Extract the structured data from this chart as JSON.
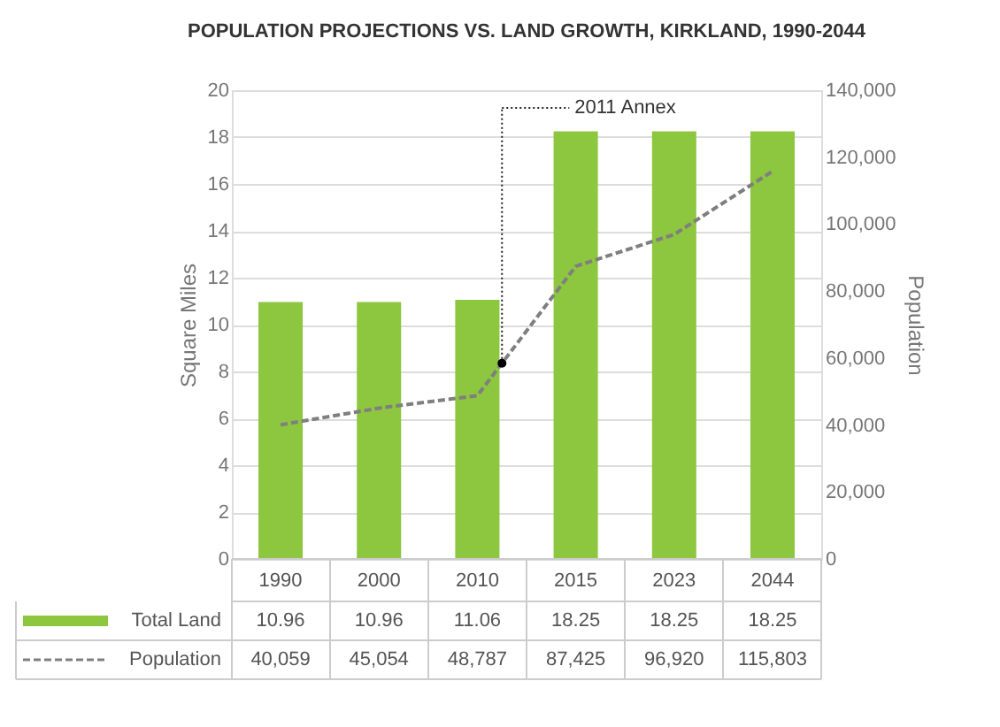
{
  "chart_data": {
    "type": "bar",
    "title": "POPULATION PROJECTIONS VS. LAND GROWTH, KIRKLAND, 1990-2044",
    "categories": [
      "1990",
      "2000",
      "2010",
      "2015",
      "2023",
      "2044"
    ],
    "series": [
      {
        "name": "Total Land",
        "color": "#8dc63f",
        "values": [
          10.96,
          10.96,
          11.06,
          18.25,
          18.25,
          18.25
        ],
        "value_labels": [
          "10.96",
          "10.96",
          "11.06",
          "18.25",
          "18.25",
          "18.25"
        ]
      },
      {
        "name": "Population",
        "type": "line",
        "axis": "y2",
        "color": "#7f7f7f",
        "line_style": "dashed",
        "values": [
          40059,
          45054,
          48787,
          87425,
          96920,
          115803
        ],
        "value_labels": [
          "40,059",
          "45,054",
          "48,787",
          "87,425",
          "96,920",
          "115,803"
        ]
      }
    ],
    "ylabel": "Square Miles",
    "y2label": "Population",
    "ylim": [
      0,
      20
    ],
    "yticks": [
      0,
      2,
      4,
      6,
      8,
      10,
      12,
      14,
      16,
      18,
      20
    ],
    "y2lim": [
      0,
      140000
    ],
    "y2ticks": [
      {
        "value": 0,
        "label": "0"
      },
      {
        "value": 20000,
        "label": "20,000"
      },
      {
        "value": 40000,
        "label": "40,000"
      },
      {
        "value": 60000,
        "label": "60,000"
      },
      {
        "value": 80000,
        "label": "80,000"
      },
      {
        "value": 100000,
        "label": "100,000"
      },
      {
        "value": 120000,
        "label": "120,000"
      },
      {
        "value": 140000,
        "label": "140,000"
      }
    ],
    "annotations": [
      "2011 Annex"
    ],
    "grid": "y",
    "legend": "bottom"
  }
}
